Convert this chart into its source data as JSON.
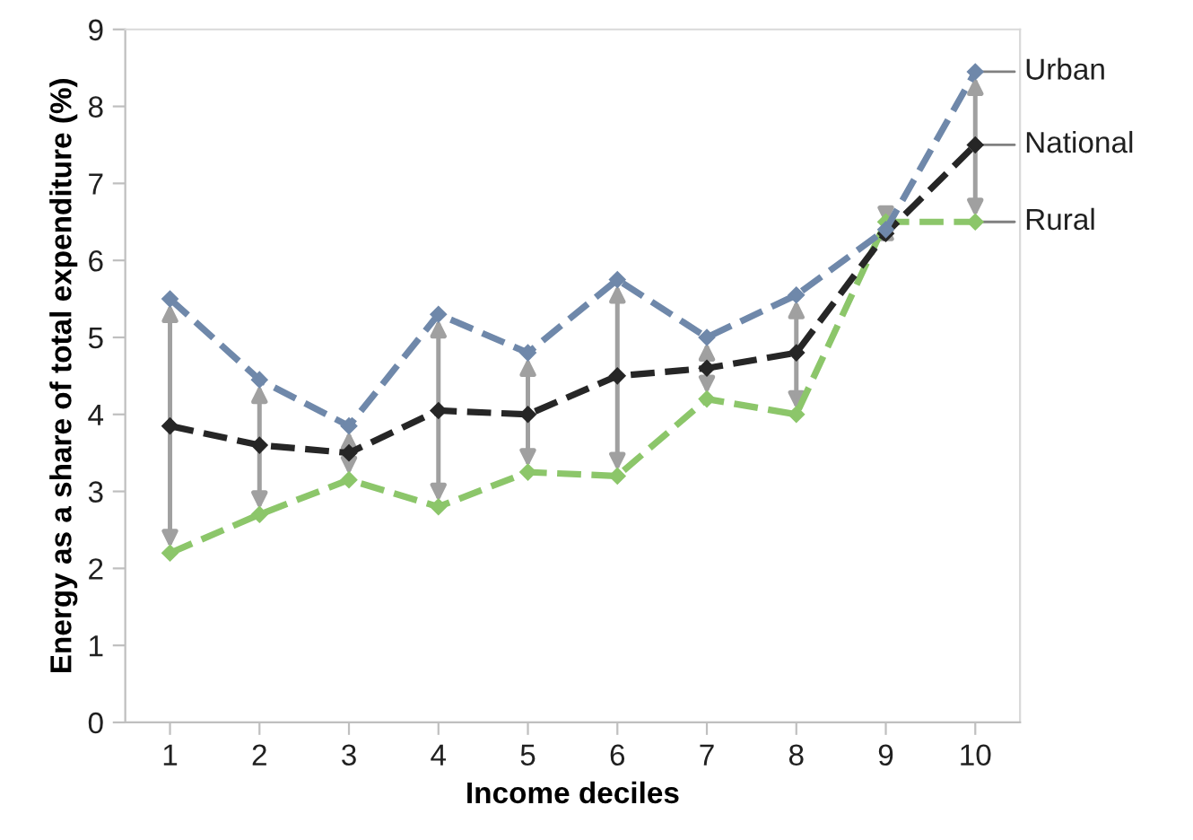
{
  "chart_data": {
    "type": "line",
    "xlabel": "Income deciles",
    "ylabel": "Energy as a share of total expenditure (%)",
    "categories": [
      "1",
      "2",
      "3",
      "4",
      "5",
      "6",
      "7",
      "8",
      "9",
      "10"
    ],
    "series": [
      {
        "name": "Urban",
        "color": "#6f88aa",
        "values": [
          5.5,
          4.45,
          3.85,
          5.3,
          4.8,
          5.75,
          5.0,
          5.55,
          6.4,
          8.45
        ]
      },
      {
        "name": "National",
        "color": "#262626",
        "values": [
          3.85,
          3.6,
          3.5,
          4.05,
          4.0,
          4.5,
          4.6,
          4.8,
          6.35,
          7.5
        ]
      },
      {
        "name": "Rural",
        "color": "#8cc66a",
        "values": [
          2.2,
          2.7,
          3.15,
          2.8,
          3.25,
          3.2,
          4.2,
          4.0,
          6.5,
          6.5
        ]
      }
    ],
    "ylim": [
      0,
      9
    ],
    "yticks": [
      0,
      1,
      2,
      3,
      4,
      5,
      6,
      7,
      8,
      9
    ],
    "marker": "diamond",
    "line_style": "dashed",
    "legend": false,
    "grid": false
  }
}
